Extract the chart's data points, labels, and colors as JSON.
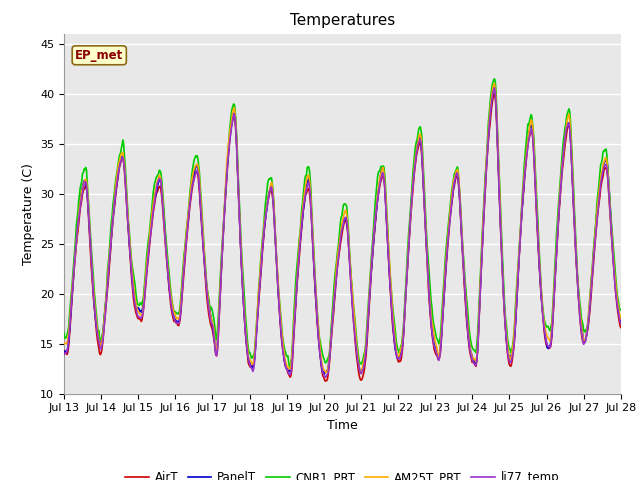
{
  "title": "Temperatures",
  "xlabel": "Time",
  "ylabel": "Temperature (C)",
  "ylim": [
    10,
    46
  ],
  "xlim": [
    0,
    15
  ],
  "series": [
    "AirT",
    "PanelT",
    "CNR1_PRT",
    "AM25T_PRT",
    "li77_temp"
  ],
  "colors": [
    "#cc0000",
    "#0000cc",
    "#00cc00",
    "#ffaa00",
    "#9933cc"
  ],
  "linewidths": [
    1.2,
    1.2,
    1.2,
    1.2,
    1.2
  ],
  "xtick_labels": [
    "Jul 13",
    "Jul 14",
    "Jul 15",
    "Jul 16",
    "Jul 17",
    "Jul 18",
    "Jul 19",
    "Jul 20",
    "Jul 21",
    "Jul 22",
    "Jul 23",
    "Jul 24",
    "Jul 25",
    "Jul 26",
    "Jul 27",
    "Jul 28"
  ],
  "xtick_positions": [
    0,
    1,
    2,
    3,
    4,
    5,
    6,
    7,
    8,
    9,
    10,
    11,
    12,
    13,
    14,
    15
  ],
  "ytick_positions": [
    10,
    15,
    20,
    25,
    30,
    35,
    40,
    45
  ],
  "annotation_text": "EP_met",
  "background_color": "#e8e8e8",
  "grid_color": "#ffffff",
  "title_fontsize": 11,
  "axis_fontsize": 9,
  "tick_fontsize": 8,
  "day_mins": [
    14.0,
    17.5,
    17.0,
    16.5,
    12.5,
    12.0,
    11.5,
    11.5,
    13.0,
    14.0,
    13.0,
    12.5,
    14.5,
    14.5,
    16.5
  ],
  "day_maxs": [
    31.0,
    33.5,
    31.0,
    32.5,
    38.0,
    30.5,
    31.0,
    27.5,
    32.0,
    35.5,
    32.0,
    40.5,
    36.5,
    37.0,
    33.0
  ],
  "day_mid_maxs": [
    19.0,
    21.0,
    20.0,
    19.5,
    18.0,
    16.0,
    15.0,
    13.5,
    20.0,
    20.0,
    19.0,
    19.0,
    20.0,
    18.0,
    19.0
  ]
}
